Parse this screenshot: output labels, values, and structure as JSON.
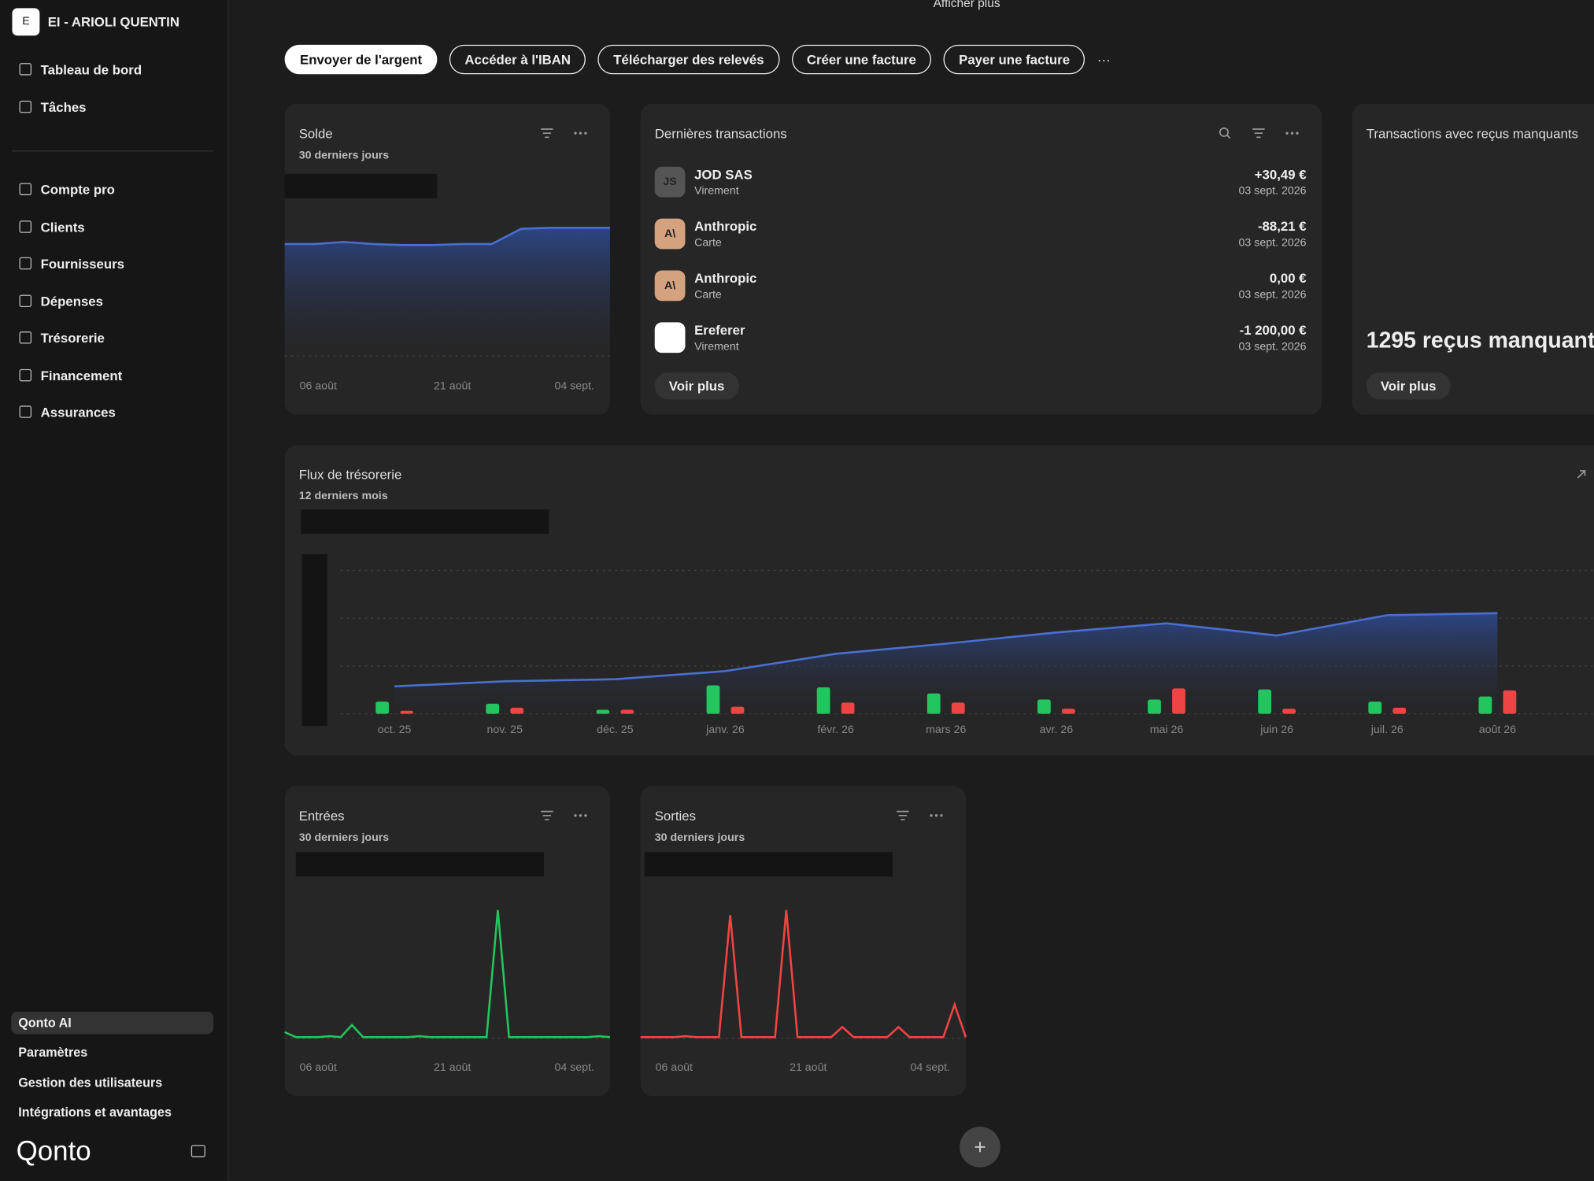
{
  "sidebar": {
    "avatar": "E",
    "workspace": "EI - ARIOLI QUENTIN",
    "nav_top": [
      "Tableau de bord",
      "Tâches"
    ],
    "nav_main": [
      "Compte pro",
      "Clients",
      "Fournisseurs",
      "Dépenses",
      "Trésorerie",
      "Financement",
      "Assurances"
    ],
    "nav_bottom": [
      "Qonto AI",
      "Paramètres",
      "Gestion des utilisateurs",
      "Intégrations et avantages"
    ],
    "logo": "Qonto"
  },
  "top_link": "Afficher plus",
  "actions": [
    "Envoyer de l'argent",
    "Accéder à l'IBAN",
    "Télécharger des relevés",
    "Créer une facture",
    "Payer une facture",
    "···"
  ],
  "balance": {
    "title": "Solde",
    "subtitle": "30 derniers jours",
    "x_labels": [
      "06 août",
      "21 août",
      "04 sept."
    ],
    "values": [
      110,
      110,
      112,
      110,
      109,
      109,
      110,
      110,
      125,
      126,
      126,
      126
    ],
    "color": "#4a6fd0"
  },
  "transactions": {
    "title": "Dernières transactions",
    "button": "Voir plus",
    "items": [
      {
        "initials": "JS",
        "name": "JOD SAS",
        "method": "Virement",
        "amount": "+30,49 €",
        "date": "03 sept. 2026"
      },
      {
        "initials": "A\\",
        "name": "Anthropic",
        "method": "Carte",
        "amount": "-88,21 €",
        "date": "03 sept. 2026"
      },
      {
        "initials": "A\\",
        "name": "Anthropic",
        "method": "Carte",
        "amount": "0,00 €",
        "date": "03 sept. 2026"
      },
      {
        "name": "Ereferer",
        "method": "Virement",
        "amount": "-1 200,00 €",
        "date": "03 sept. 2026"
      }
    ]
  },
  "receipts": {
    "title": "Transactions avec reçus manquants",
    "count_text": "1295 reçus manquant",
    "button": "Voir plus"
  },
  "cashflow": {
    "title": "Flux de trésorerie",
    "subtitle": "12 derniers mois",
    "categories": [
      "oct. 25",
      "nov. 25",
      "déc. 25",
      "janv. 26",
      "févr. 26",
      "mars 26",
      "avr. 26",
      "mai 26",
      "juin 26",
      "juil. 26",
      "août 26"
    ],
    "inflows": {
      "color": "#22c55e",
      "values": [
        12,
        10,
        4,
        28,
        26,
        20,
        14,
        14,
        24,
        12,
        17
      ]
    },
    "outflows": {
      "color": "#ef4444",
      "values": [
        3,
        6,
        4,
        7,
        11,
        11,
        5,
        25,
        5,
        6,
        23
      ]
    },
    "balance": {
      "color": "#4a6fd0",
      "values": [
        27,
        32,
        34,
        42,
        59,
        69,
        80,
        89,
        77,
        97,
        99
      ]
    }
  },
  "inflows_card": {
    "title": "Entrées",
    "subtitle": "30 derniers jours",
    "x_labels": [
      "06 août",
      "21 août",
      "04 sept."
    ],
    "color": "#22c55e",
    "values": [
      5,
      0,
      0,
      0,
      1,
      0,
      12,
      0,
      0,
      0,
      0,
      0,
      1,
      0,
      0,
      0,
      0,
      0,
      0,
      125,
      0,
      0,
      0,
      0,
      0,
      0,
      0,
      0,
      1,
      0
    ]
  },
  "outflows_card": {
    "title": "Sorties",
    "subtitle": "30 derniers jours",
    "x_labels": [
      "06 août",
      "21 août",
      "04 sept."
    ],
    "color": "#ef4444",
    "values": [
      0,
      0,
      0,
      0,
      1,
      0,
      0,
      0,
      120,
      0,
      0,
      0,
      0,
      125,
      0,
      0,
      0,
      0,
      10,
      0,
      0,
      0,
      0,
      10,
      0,
      0,
      0,
      0,
      32,
      0
    ]
  }
}
